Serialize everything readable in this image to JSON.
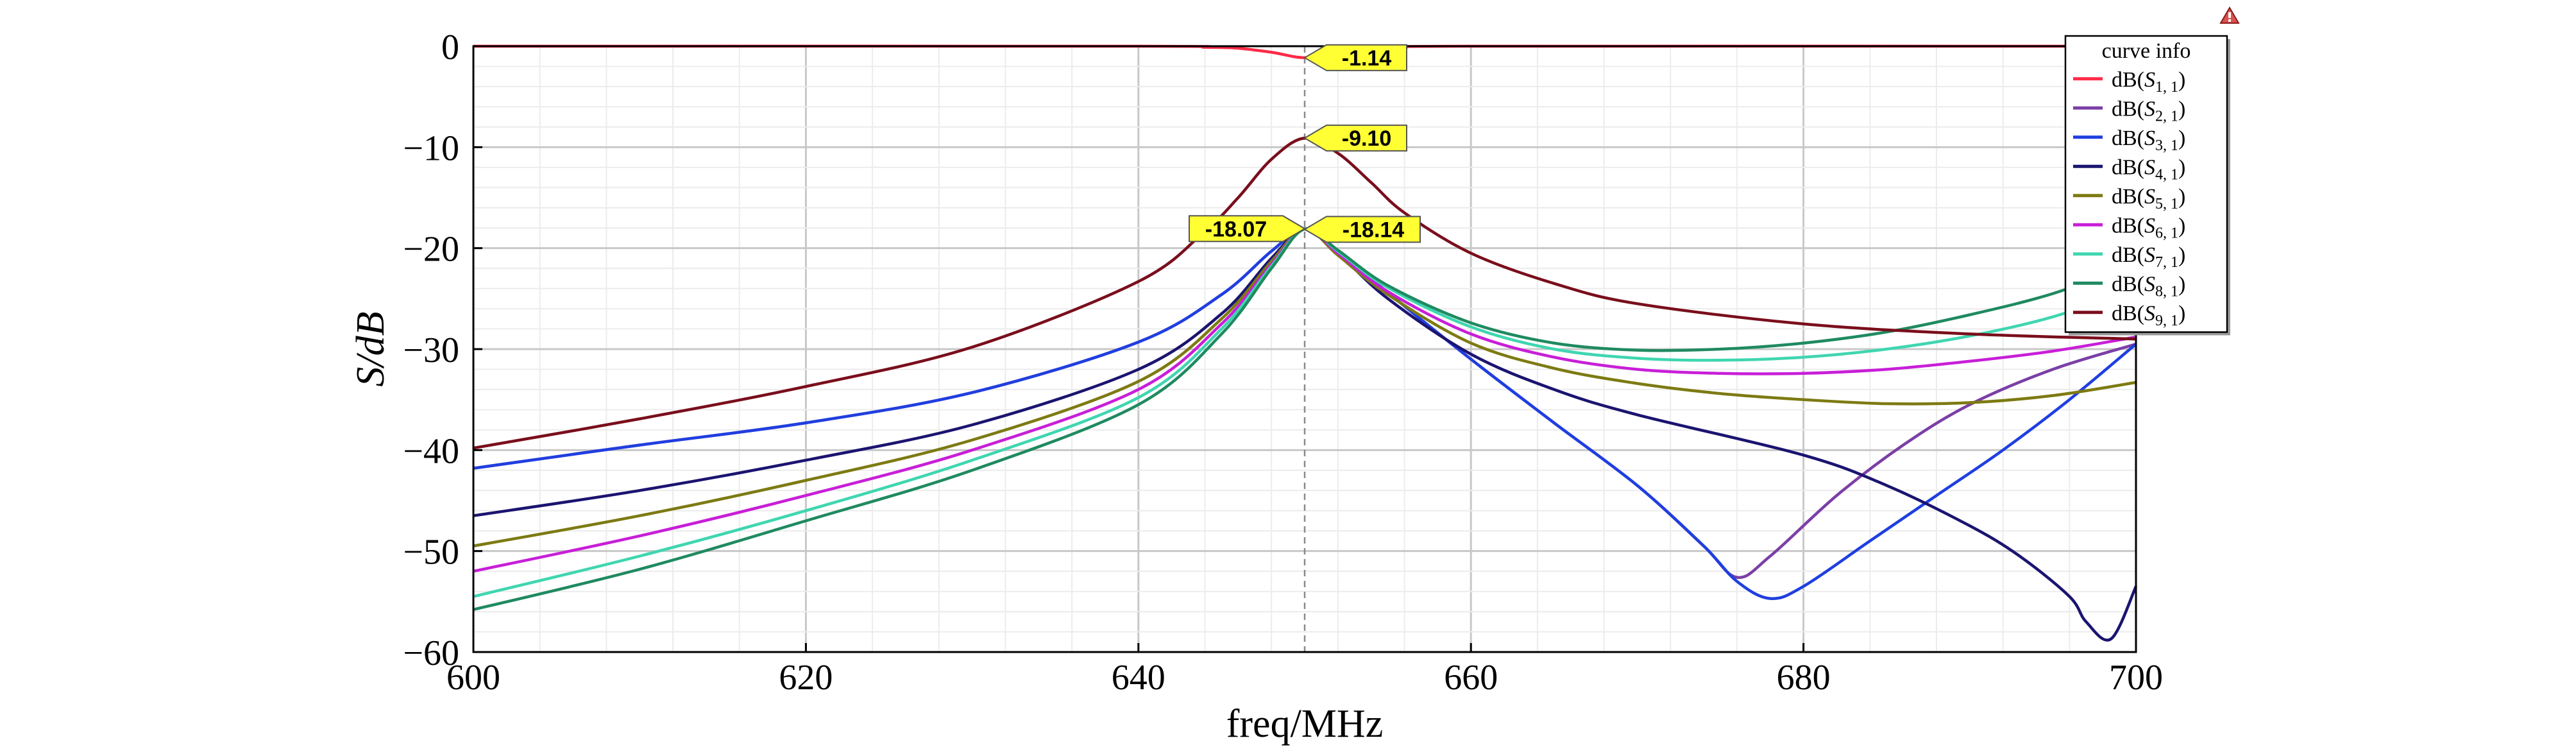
{
  "chart_data": {
    "type": "line",
    "title": "",
    "xlabel": "freq/MHz",
    "ylabel": "S/dB",
    "xlim": [
      600,
      700
    ],
    "ylim": [
      -60,
      0
    ],
    "x_ticks": [
      600,
      620,
      640,
      660,
      680,
      700
    ],
    "y_ticks": [
      0,
      -10,
      -20,
      -30,
      -40,
      -50,
      -60
    ],
    "x_tick_labels": [
      "600",
      "620",
      "640",
      "660",
      "680",
      "700"
    ],
    "y_tick_labels": [
      "0",
      "−10",
      "−20",
      "−30",
      "−40",
      "−50",
      "−60"
    ],
    "grid": true,
    "vertical_reference_line_x": 650,
    "legend": {
      "title": "curve info",
      "placement": "top-right"
    },
    "series": [
      {
        "name": "dB(S1,1)",
        "sub": "1, 1",
        "color": "#ff2b48",
        "x": [
          600,
          640,
          644,
          646,
          648,
          650,
          652,
          654,
          656,
          660,
          700
        ],
        "y": [
          0,
          0,
          -0.1,
          -0.2,
          -0.6,
          -1.14,
          -0.6,
          -0.2,
          -0.1,
          0,
          0
        ]
      },
      {
        "name": "dB(S2,1)",
        "sub": "2, 1",
        "color": "#7b3fa6",
        "x": [
          600,
          610,
          620,
          630,
          640,
          645,
          648,
          650,
          652,
          655,
          660,
          665,
          670,
          674,
          676,
          678,
          682,
          686,
          690,
          695,
          700
        ],
        "y": [
          -41.8,
          -39.5,
          -37.3,
          -34.3,
          -29.3,
          -24.6,
          -20.3,
          -18.1,
          -20.3,
          -24.4,
          -31,
          -37.3,
          -43.5,
          -49.5,
          -52.6,
          -50.5,
          -44.5,
          -39.5,
          -35.5,
          -32,
          -29.5
        ]
      },
      {
        "name": "dB(S3,1)",
        "sub": "3, 1",
        "color": "#1f3fe0",
        "x": [
          600,
          610,
          620,
          630,
          640,
          645,
          648,
          650,
          652,
          655,
          660,
          665,
          670,
          674,
          676,
          678,
          680,
          684,
          688,
          692,
          696,
          700
        ],
        "y": [
          -41.8,
          -39.5,
          -37.3,
          -34.3,
          -29.3,
          -24.6,
          -20.3,
          -18.1,
          -20.3,
          -24.4,
          -31,
          -37.3,
          -43.5,
          -49.5,
          -53,
          -54.7,
          -53.5,
          -49,
          -44.5,
          -40,
          -35,
          -29.5
        ]
      },
      {
        "name": "dB(S4,1)",
        "sub": "4, 1",
        "color": "#1b1470",
        "x": [
          600,
          610,
          620,
          630,
          640,
          645,
          648,
          650,
          652,
          655,
          660,
          665,
          670,
          680,
          685,
          690,
          693,
          696,
          697,
          698.5,
          700
        ],
        "y": [
          -46.5,
          -44,
          -41,
          -37.5,
          -32,
          -26.5,
          -21,
          -18.1,
          -20.5,
          -25,
          -30.5,
          -34,
          -36.5,
          -40.5,
          -43.5,
          -47.5,
          -50.5,
          -54.5,
          -57,
          -58.7,
          -53.5
        ]
      },
      {
        "name": "dB(S5,1)",
        "sub": "5, 1",
        "color": "#7d7a12",
        "x": [
          600,
          610,
          620,
          630,
          640,
          645,
          648,
          650,
          652,
          655,
          660,
          665,
          670,
          675,
          680,
          685,
          690,
          695,
          700
        ],
        "y": [
          -49.5,
          -46.5,
          -43,
          -39,
          -33.2,
          -27,
          -21.3,
          -18.1,
          -20.7,
          -24.6,
          -29.4,
          -31.9,
          -33.4,
          -34.4,
          -35,
          -35.4,
          -35.3,
          -34.6,
          -33.3
        ]
      },
      {
        "name": "dB(S6,1)",
        "sub": "6, 1",
        "color": "#c81ed8",
        "x": [
          600,
          610,
          620,
          630,
          640,
          645,
          648,
          650,
          652,
          655,
          660,
          665,
          670,
          675,
          680,
          685,
          690,
          695,
          700
        ],
        "y": [
          -52,
          -48.5,
          -44.5,
          -40,
          -34,
          -27.5,
          -21.6,
          -18.1,
          -20.5,
          -24.3,
          -28.5,
          -30.8,
          -32,
          -32.4,
          -32.4,
          -32,
          -31.2,
          -30.2,
          -28.8
        ]
      },
      {
        "name": "dB(S7,1)",
        "sub": "7, 1",
        "color": "#3fd6b0",
        "x": [
          600,
          610,
          620,
          630,
          640,
          645,
          648,
          650,
          652,
          655,
          660,
          665,
          670,
          675,
          680,
          685,
          690,
          695,
          700
        ],
        "y": [
          -54.5,
          -50.5,
          -46,
          -41,
          -34.8,
          -28,
          -21.8,
          -18.1,
          -20.3,
          -23.9,
          -27.8,
          -30,
          -30.9,
          -31.1,
          -30.8,
          -30,
          -28.7,
          -26.8,
          -24
        ]
      },
      {
        "name": "dB(S8,1)",
        "sub": "8, 1",
        "color": "#1f8a60",
        "x": [
          600,
          610,
          620,
          630,
          640,
          645,
          648,
          650,
          652,
          655,
          660,
          665,
          670,
          675,
          680,
          685,
          690,
          695,
          700
        ],
        "y": [
          -55.8,
          -51.8,
          -47,
          -42,
          -35.5,
          -28.5,
          -22,
          -18.1,
          -20.2,
          -23.7,
          -27.4,
          -29.4,
          -30.1,
          -30,
          -29.4,
          -28.3,
          -26.6,
          -24.5,
          -21.5
        ]
      },
      {
        "name": "dB(S9,1)",
        "sub": "9, 1",
        "color": "#7a0e1c",
        "x": [
          600,
          610,
          620,
          630,
          640,
          644,
          646,
          648,
          650,
          652,
          654,
          656,
          660,
          665,
          670,
          680,
          690,
          700
        ],
        "y": [
          -39.8,
          -36.9,
          -33.7,
          -29.8,
          -23.3,
          -18.3,
          -15,
          -11.2,
          -9.1,
          -10.6,
          -13.5,
          -16.5,
          -20.5,
          -23.5,
          -25.5,
          -27.5,
          -28.5,
          -29
        ]
      }
    ],
    "markers": [
      {
        "text": "-1.14",
        "x": 650,
        "y": -1.14,
        "side": "right"
      },
      {
        "text": "-9.10",
        "x": 650,
        "y": -9.1,
        "side": "right"
      },
      {
        "text": "-18.14",
        "x": 650,
        "y": -18.14,
        "side": "right"
      },
      {
        "text": "-18.07",
        "x": 650,
        "y": -18.07,
        "side": "left"
      }
    ],
    "corner_icon": "warning-triangle-icon"
  }
}
